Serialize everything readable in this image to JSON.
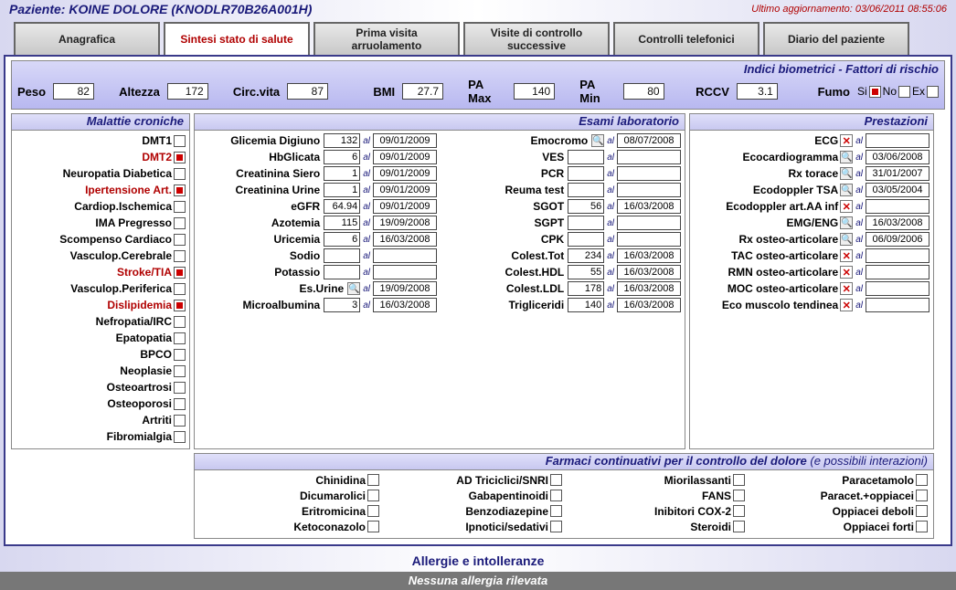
{
  "header": {
    "patient_label": "Paziente: KOINE DOLORE (KNODLR70B26A001H)",
    "update_label": "Ultimo aggiornamento: 03/06/2011 08:55:06"
  },
  "tabs": {
    "t0": "Anagrafica",
    "t1": "Sintesi stato di salute",
    "t2": "Prima visita\narruolamento",
    "t3": "Visite di controllo\nsuccessive",
    "t4": "Controlli telefonici",
    "t5": "Diario del paziente",
    "active": 1
  },
  "biom": {
    "title": "Indici biometrici - Fattori di rischio",
    "peso": {
      "label": "Peso",
      "val": "82"
    },
    "altezza": {
      "label": "Altezza",
      "val": "172"
    },
    "circ": {
      "label": "Circ.vita",
      "val": "87"
    },
    "bmi": {
      "label": "BMI",
      "val": "27.7"
    },
    "pamax": {
      "label": "PA Max",
      "val": "140"
    },
    "pamin": {
      "label": "PA Min",
      "val": "80"
    },
    "rccv": {
      "label": "RCCV",
      "val": "3.1"
    },
    "fumo": {
      "label": "Fumo",
      "si": "Si",
      "no": "No",
      "ex": "Ex",
      "checked": "si"
    }
  },
  "chron": {
    "title": "Malattie croniche",
    "items": [
      {
        "label": "DMT1",
        "checked": false
      },
      {
        "label": "DMT2",
        "checked": true
      },
      {
        "label": "Neuropatia Diabetica",
        "checked": false
      },
      {
        "label": "Ipertensione Art.",
        "checked": true
      },
      {
        "label": "Cardiop.Ischemica",
        "checked": false
      },
      {
        "label": "IMA Pregresso",
        "checked": false
      },
      {
        "label": "Scompenso Cardiaco",
        "checked": false
      },
      {
        "label": "Vasculop.Cerebrale",
        "checked": false
      },
      {
        "label": "Stroke/TIA",
        "checked": true
      },
      {
        "label": "Vasculop.Periferica",
        "checked": false
      },
      {
        "label": "Dislipidemia",
        "checked": true
      },
      {
        "label": "Nefropatia/IRC",
        "checked": false
      },
      {
        "label": "Epatopatia",
        "checked": false
      },
      {
        "label": "BPCO",
        "checked": false
      },
      {
        "label": "Neoplasie",
        "checked": false
      },
      {
        "label": "Osteoartrosi",
        "checked": false
      },
      {
        "label": "Osteoporosi",
        "checked": false
      },
      {
        "label": "Artriti",
        "checked": false
      },
      {
        "label": "Fibromialgia",
        "checked": false
      }
    ]
  },
  "lab": {
    "title": "Esami laboratorio",
    "left": [
      {
        "label": "Glicemia Digiuno",
        "val": "132",
        "date": "09/01/2009",
        "icon": ""
      },
      {
        "label": "HbGlicata",
        "val": "6",
        "date": "09/01/2009",
        "icon": ""
      },
      {
        "label": "Creatinina Siero",
        "val": "1",
        "date": "09/01/2009",
        "icon": ""
      },
      {
        "label": "Creatinina Urine",
        "val": "1",
        "date": "09/01/2009",
        "icon": ""
      },
      {
        "label": "eGFR",
        "val": "64.94",
        "date": "09/01/2009",
        "icon": ""
      },
      {
        "label": "Azotemia",
        "val": "115",
        "date": "19/09/2008",
        "icon": ""
      },
      {
        "label": "Uricemia",
        "val": "6",
        "date": "16/03/2008",
        "icon": ""
      },
      {
        "label": "Sodio",
        "val": "",
        "date": "",
        "icon": ""
      },
      {
        "label": "Potassio",
        "val": "",
        "date": "",
        "icon": ""
      },
      {
        "label": "Es.Urine",
        "val": "",
        "date": "19/09/2008",
        "icon": "mag"
      },
      {
        "label": "Microalbumina",
        "val": "3",
        "date": "16/03/2008",
        "icon": ""
      }
    ],
    "right": [
      {
        "label": "Emocromo",
        "val": "",
        "date": "08/07/2008",
        "icon": "mag"
      },
      {
        "label": "VES",
        "val": "",
        "date": "",
        "icon": ""
      },
      {
        "label": "PCR",
        "val": "",
        "date": "",
        "icon": ""
      },
      {
        "label": "Reuma test",
        "val": "",
        "date": "",
        "icon": ""
      },
      {
        "label": "SGOT",
        "val": "56",
        "date": "16/03/2008",
        "icon": ""
      },
      {
        "label": "SGPT",
        "val": "",
        "date": "",
        "icon": ""
      },
      {
        "label": "CPK",
        "val": "",
        "date": "",
        "icon": ""
      },
      {
        "label": "Colest.Tot",
        "val": "234",
        "date": "16/03/2008",
        "icon": ""
      },
      {
        "label": "Colest.HDL",
        "val": "55",
        "date": "16/03/2008",
        "icon": ""
      },
      {
        "label": "Colest.LDL",
        "val": "178",
        "date": "16/03/2008",
        "icon": ""
      },
      {
        "label": "Trigliceridi",
        "val": "140",
        "date": "16/03/2008",
        "icon": ""
      }
    ]
  },
  "prest": {
    "title": "Prestazioni",
    "items": [
      {
        "label": "ECG",
        "icon": "x",
        "date": ""
      },
      {
        "label": "Ecocardiogramma",
        "icon": "mag",
        "date": "03/06/2008"
      },
      {
        "label": "Rx torace",
        "icon": "mag",
        "date": "31/01/2007"
      },
      {
        "label": "Ecodoppler TSA",
        "icon": "mag",
        "date": "03/05/2004"
      },
      {
        "label": "Ecodoppler art.AA inf",
        "icon": "x",
        "date": ""
      },
      {
        "label": "EMG/ENG",
        "icon": "mag",
        "date": "16/03/2008"
      },
      {
        "label": "Rx osteo-articolare",
        "icon": "mag",
        "date": "06/09/2006"
      },
      {
        "label": "TAC osteo-articolare",
        "icon": "x",
        "date": ""
      },
      {
        "label": "RMN osteo-articolare",
        "icon": "x",
        "date": ""
      },
      {
        "label": "MOC osteo-articolare",
        "icon": "x",
        "date": ""
      },
      {
        "label": "Eco muscolo tendinea",
        "icon": "x",
        "date": ""
      }
    ]
  },
  "drugs": {
    "title": "Farmaci continuativi per il controllo del dolore",
    "sub": "(e possibili interazioni)",
    "col0": [
      {
        "label": "Chinidina"
      },
      {
        "label": "Dicumarolici"
      },
      {
        "label": "Eritromicina"
      },
      {
        "label": "Ketoconazolo"
      }
    ],
    "col1": [
      {
        "label": "AD Triciclici/SNRI"
      },
      {
        "label": "Gabapentinoidi"
      },
      {
        "label": "Benzodiazepine"
      },
      {
        "label": "Ipnotici/sedativi"
      }
    ],
    "col2": [
      {
        "label": "Miorilassanti"
      },
      {
        "label": "FANS"
      },
      {
        "label": "Inibitori COX-2"
      },
      {
        "label": "Steroidi"
      }
    ],
    "col3": [
      {
        "label": "Paracetamolo"
      },
      {
        "label": "Paracet.+oppiacei"
      },
      {
        "label": "Oppiacei deboli"
      },
      {
        "label": "Oppiacei forti"
      }
    ]
  },
  "allergy": {
    "title": "Allergie e intolleranze",
    "none": "Nessuna allergia rilevata"
  },
  "al_text": "al"
}
